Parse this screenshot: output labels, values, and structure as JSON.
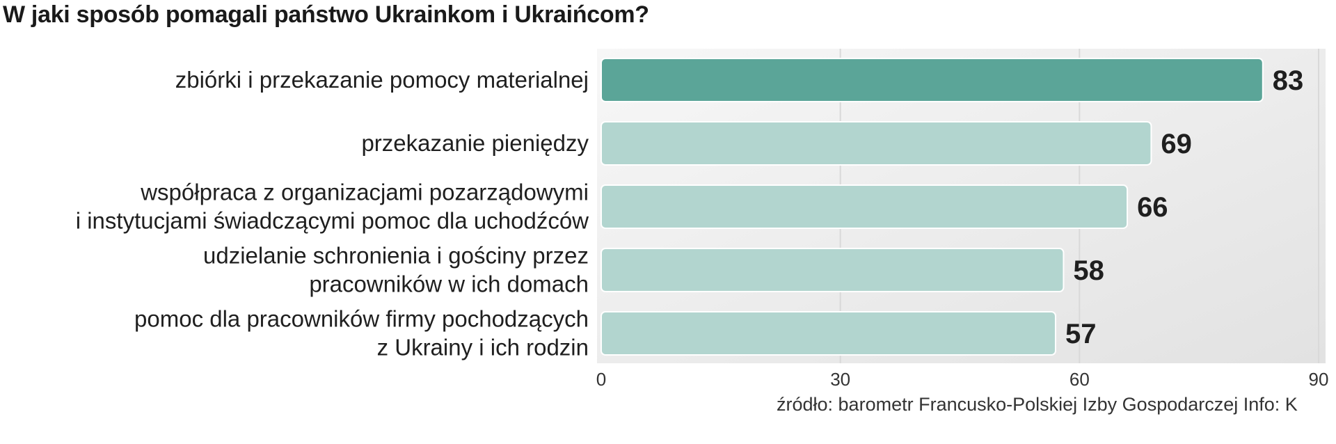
{
  "title": "W jaki sposób pomagali państwo Ukrainkom i Ukraińcom?",
  "source": "źródło: barometr Francusko-Polskiej Izby Gospodarczej   Info: K",
  "colors": {
    "highlight": "#5ba598",
    "bar": "#b2d5cf",
    "plot_bg": "#ebebeb"
  },
  "chart_data": {
    "type": "bar",
    "orientation": "horizontal",
    "categories": [
      [
        "zbiórki i przekazanie pomocy materialnej"
      ],
      [
        "przekazanie pieniędzy"
      ],
      [
        "współpraca z organizacjami pozarządowymi",
        "i instytucjami świadczącymi pomoc dla uchodźców"
      ],
      [
        "udzielanie schronienia i gościny przez",
        "pracowników w ich domach"
      ],
      [
        "pomoc dla pracowników firmy pochodzących",
        "z Ukrainy i ich rodzin"
      ]
    ],
    "values": [
      83,
      69,
      66,
      58,
      57
    ],
    "highlight_index": 0,
    "xlim": [
      0,
      90
    ],
    "xticks": [
      0,
      30,
      60,
      90
    ],
    "grid": true
  }
}
